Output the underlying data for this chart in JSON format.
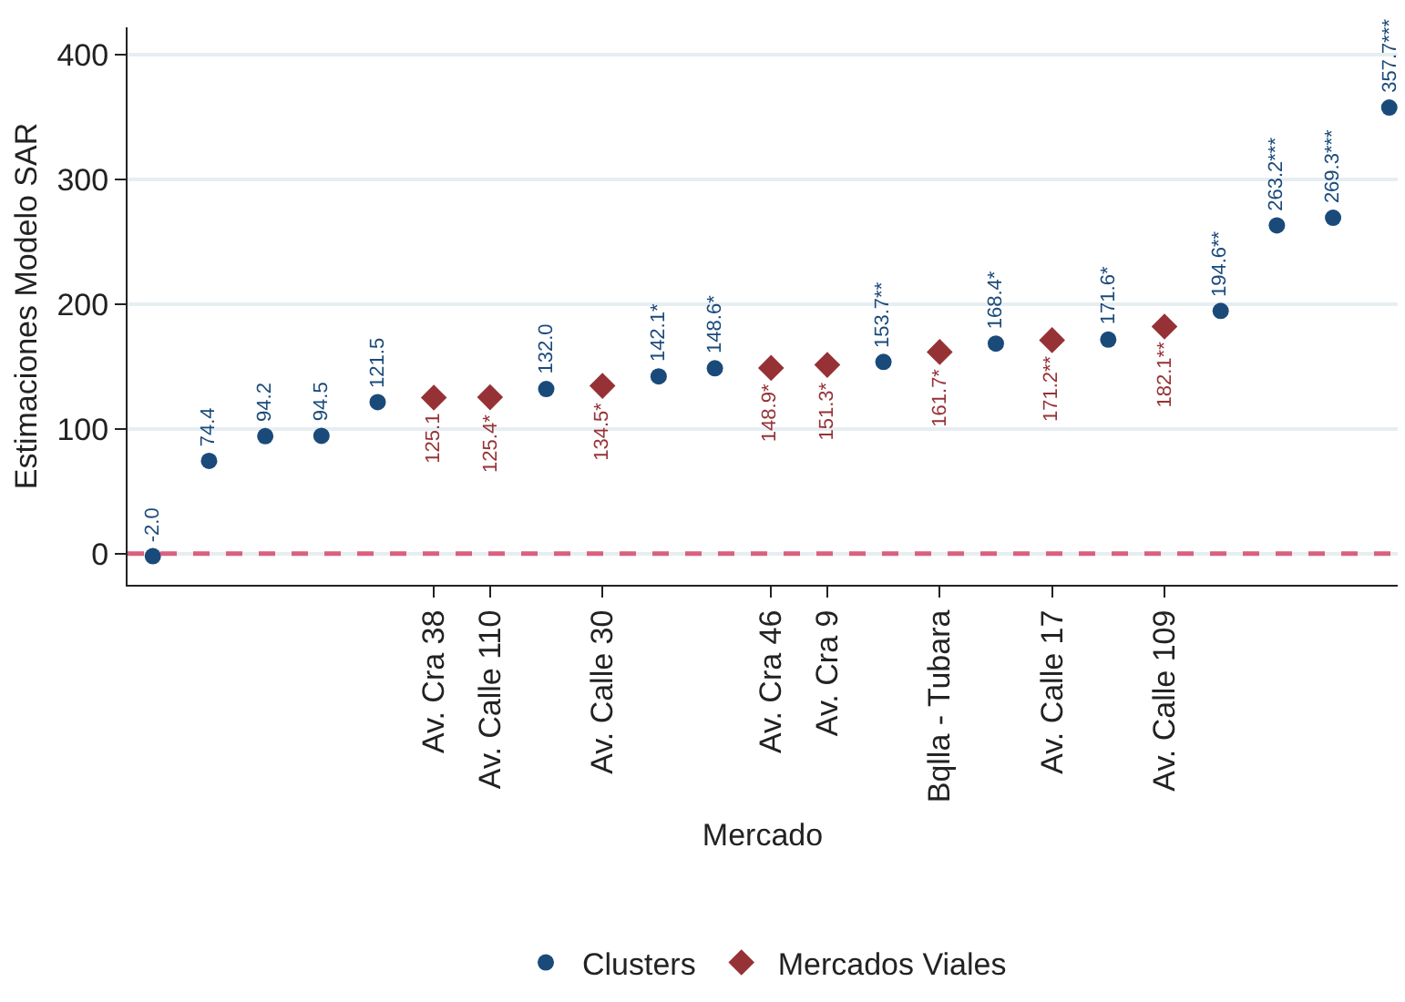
{
  "chart_data": {
    "type": "scatter",
    "xlabel": "Mercado",
    "ylabel": "Estimaciones Modelo SAR",
    "categories": [
      null,
      null,
      null,
      null,
      null,
      "Av. Cra 38",
      "Av. Calle 110",
      null,
      "Av. Calle 30",
      null,
      null,
      "Av. Cra 46",
      "Av. Cra 9",
      null,
      "Bqlla - Tubara",
      null,
      "Av. Calle 17",
      null,
      "Av. Calle 109",
      null,
      null,
      null,
      null
    ],
    "series": [
      {
        "name": "Clusters",
        "color": "#1a4a7a",
        "marker": "circle",
        "values": [
          -2.0,
          74.4,
          94.2,
          94.5,
          121.5,
          null,
          null,
          132.0,
          null,
          142.1,
          148.6,
          null,
          null,
          153.7,
          null,
          168.4,
          null,
          171.6,
          null,
          194.6,
          263.2,
          269.3,
          357.7
        ],
        "value_labels": [
          "-2.0",
          "74.4",
          "94.2",
          "94.5",
          "121.5",
          null,
          null,
          "132.0",
          null,
          "142.1*",
          "148.6*",
          null,
          null,
          "153.7**",
          null,
          "168.4*",
          null,
          "171.6*",
          null,
          "194.6**",
          "263.2***",
          "269.3***",
          "357.7***"
        ]
      },
      {
        "name": "Mercados Viales",
        "color": "#963236",
        "marker": "diamond",
        "values": [
          null,
          null,
          null,
          null,
          null,
          125.1,
          125.4,
          null,
          134.5,
          null,
          null,
          148.9,
          151.3,
          null,
          161.7,
          null,
          171.2,
          null,
          182.1,
          null,
          null,
          null,
          null
        ],
        "value_labels": [
          null,
          null,
          null,
          null,
          null,
          "125.1",
          "125.4*",
          null,
          "134.5*",
          null,
          null,
          "148.9*",
          "151.3*",
          null,
          "161.7*",
          null,
          "171.2**",
          null,
          "182.1**",
          null,
          null,
          null,
          null
        ]
      }
    ],
    "ylim": [
      -25,
      422
    ],
    "yticks": [
      0,
      100,
      200,
      300,
      400
    ],
    "grid": "y",
    "legend": "bottom",
    "ref_lines": [
      {
        "axis": "y",
        "value": 0,
        "color": "#d9607e",
        "line_style": "dashed"
      }
    ]
  }
}
